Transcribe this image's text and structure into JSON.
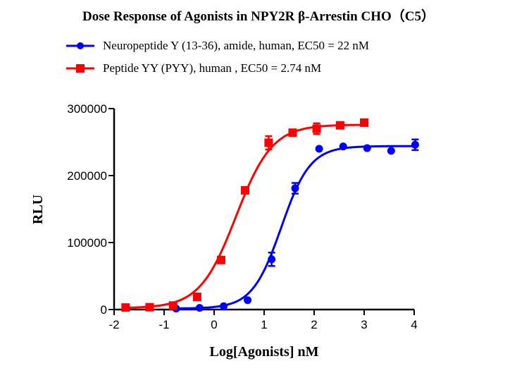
{
  "chart_data": {
    "type": "scatter",
    "title": "Dose Response of Agonists in NPY2R β-Arrestin CHO（C5）",
    "xlabel": "Log[Agonists] nM",
    "ylabel": "RLU",
    "xlim": [
      -2,
      4
    ],
    "ylim": [
      0,
      300000
    ],
    "xticks": [
      "-2",
      "-1",
      "0",
      "1",
      "2",
      "3",
      "4"
    ],
    "yticks": [
      "0",
      "100000",
      "200000",
      "300000"
    ],
    "grid": false,
    "legend_position": "top",
    "series": [
      {
        "name": "Neuropeptide Y (13-36), amide, human, EC50 = 22 nM",
        "color": "#0000ff",
        "marker": "circle",
        "ec50_nM": 22,
        "fit": {
          "bottom": 1500,
          "top": 244000,
          "hill": 1.5
        },
        "x": [
          -0.76,
          -0.29,
          0.19,
          0.67,
          1.15,
          1.62,
          2.1,
          2.58,
          3.06,
          3.54,
          4.02
        ],
        "y": [
          1500,
          2500,
          5000,
          14000,
          75000,
          181000,
          240000,
          243500,
          241000,
          237000,
          246000
        ],
        "err": [
          0,
          0,
          0,
          0,
          10000,
          8000,
          0,
          0,
          0,
          0,
          8000
        ]
      },
      {
        "name": "Peptide YY (PYY), human , EC50 = 2.74 nM",
        "color": "#ff0000",
        "marker": "square",
        "ec50_nM": 2.74,
        "fit": {
          "bottom": 2000,
          "top": 276000,
          "hill": 1.2
        },
        "x": [
          -1.77,
          -1.29,
          -0.82,
          -0.34,
          0.14,
          0.62,
          1.09,
          1.57,
          2.05,
          2.52,
          3.0
        ],
        "y": [
          3000,
          3500,
          6000,
          19000,
          74000,
          178000,
          249000,
          264000,
          270000,
          275000,
          279000
        ],
        "err": [
          0,
          0,
          0,
          0,
          0,
          0,
          10000,
          0,
          8000,
          0,
          0
        ]
      }
    ]
  }
}
